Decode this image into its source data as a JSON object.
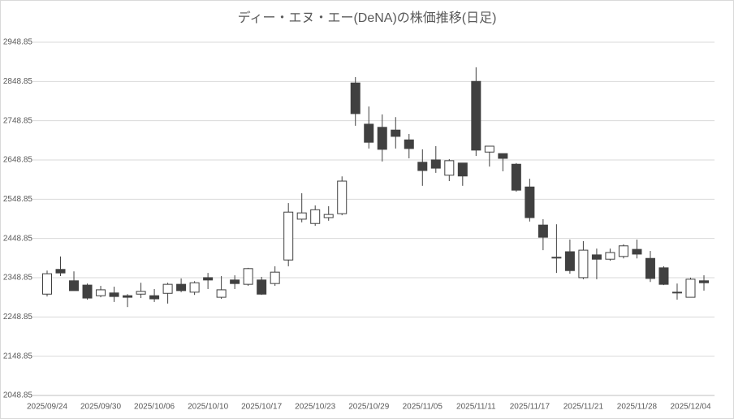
{
  "chart_data": {
    "type": "candlestick",
    "title": "ディー・エヌ・エー(DeNA)の株価推移(日足)",
    "categories": [
      "2025/09/24",
      null,
      null,
      null,
      "2025/09/30",
      null,
      null,
      null,
      "2025/10/06",
      null,
      null,
      null,
      "2025/10/10",
      null,
      null,
      null,
      "2025/10/17",
      null,
      null,
      null,
      "2025/10/23",
      null,
      null,
      null,
      "2025/10/29",
      null,
      null,
      null,
      "2025/11/05",
      null,
      null,
      null,
      "2025/11/11",
      null,
      null,
      null,
      "2025/11/17",
      null,
      null,
      null,
      "2025/11/21",
      null,
      null,
      null,
      "2025/11/28",
      null,
      null,
      null,
      "2025/12/04",
      null
    ],
    "open": [
      2307,
      2370,
      2341,
      2330,
      2303,
      2310,
      2303,
      2307,
      2303,
      2309,
      2332,
      2312,
      2349,
      2299,
      2343,
      2332,
      2343,
      2334,
      2394,
      2498,
      2487,
      2502,
      2512,
      2845,
      2740,
      2732,
      2725,
      2700,
      2643,
      2649,
      2610,
      2641,
      2849,
      2669,
      2665,
      2638,
      2580,
      2483,
      2401,
      2415,
      2349,
      2407,
      2396,
      2403,
      2421,
      2398,
      2374,
      2312,
      2299,
      2341
    ],
    "high": [
      2367,
      2403,
      2365,
      2334,
      2328,
      2326,
      2307,
      2336,
      2320,
      2336,
      2347,
      2340,
      2361,
      2353,
      2355,
      2374,
      2351,
      2378,
      2539,
      2564,
      2533,
      2531,
      2607,
      2860,
      2785,
      2765,
      2758,
      2715,
      2676,
      2684,
      2651,
      2641,
      2885,
      2684,
      2665,
      2641,
      2601,
      2498,
      2485,
      2446,
      2442,
      2423,
      2423,
      2434,
      2446,
      2417,
      2378,
      2334,
      2349,
      2355
    ],
    "low": [
      2301,
      2353,
      2316,
      2293,
      2299,
      2287,
      2274,
      2297,
      2287,
      2283,
      2312,
      2305,
      2320,
      2295,
      2320,
      2328,
      2305,
      2328,
      2378,
      2490,
      2481,
      2494,
      2508,
      2736,
      2678,
      2645,
      2678,
      2653,
      2583,
      2616,
      2595,
      2583,
      2659,
      2632,
      2620,
      2568,
      2492,
      2419,
      2361,
      2359,
      2345,
      2345,
      2392,
      2398,
      2398,
      2338,
      2330,
      2293,
      2299,
      2316
    ],
    "close": [
      2359,
      2361,
      2316,
      2297,
      2318,
      2301,
      2299,
      2314,
      2295,
      2332,
      2316,
      2336,
      2343,
      2318,
      2334,
      2372,
      2307,
      2363,
      2516,
      2514,
      2522,
      2510,
      2595,
      2767,
      2694,
      2676,
      2709,
      2678,
      2622,
      2628,
      2647,
      2608,
      2674,
      2684,
      2653,
      2572,
      2502,
      2452,
      2399,
      2367,
      2419,
      2396,
      2413,
      2430,
      2409,
      2347,
      2332,
      2310,
      2345,
      2336
    ],
    "up_color": "#ffffff",
    "down_color": "#404040",
    "edge_color": "#404040",
    "ylim": [
      2048.85,
      2948.85
    ],
    "yticks": [
      2048.85,
      2148.85,
      2248.85,
      2348.85,
      2448.85,
      2548.85,
      2648.85,
      2748.85,
      2848.85,
      2948.85
    ],
    "grid": true
  }
}
